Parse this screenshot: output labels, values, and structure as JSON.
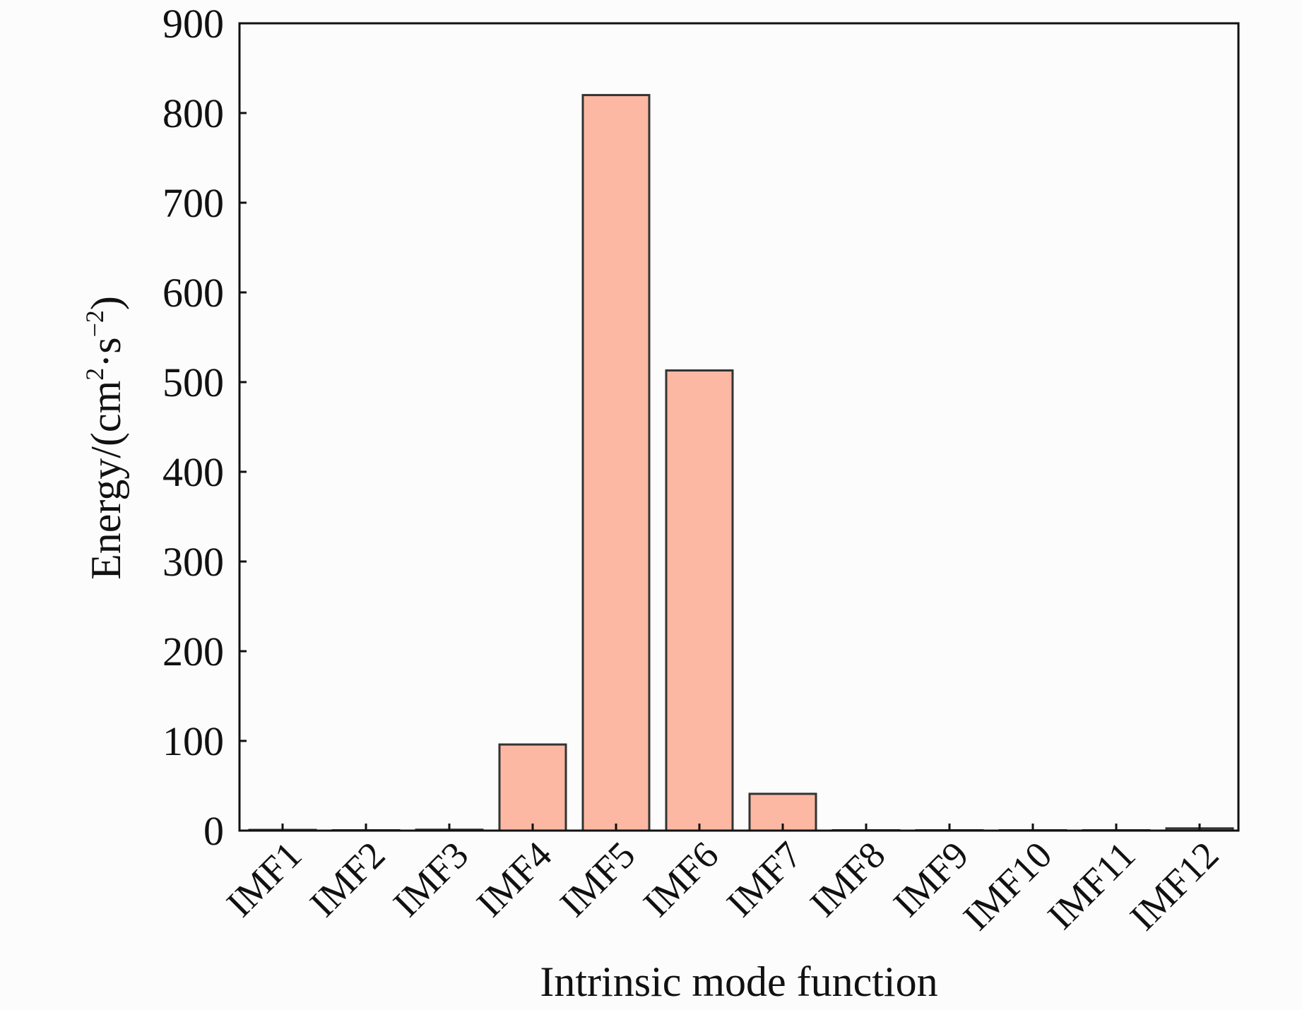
{
  "chart_data": {
    "type": "bar",
    "categories": [
      "IMF1",
      "IMF2",
      "IMF3",
      "IMF4",
      "IMF5",
      "IMF6",
      "IMF7",
      "IMF8",
      "IMF9",
      "IMF10",
      "IMF11",
      "IMF12"
    ],
    "values": [
      0.8,
      0.2,
      1.0,
      96,
      820,
      513,
      41,
      0.2,
      0.2,
      0.2,
      0.2,
      2.5
    ],
    "title": "",
    "xlabel": "Intrinsic mode function",
    "ylabel_main": "Energy/(cm",
    "ylabel_sup1": "2",
    "ylabel_mid": "·s",
    "ylabel_sup2": "−2",
    "ylabel_end": ")",
    "ylim": [
      0,
      900
    ],
    "yticks": [
      0,
      100,
      200,
      300,
      400,
      500,
      600,
      700,
      800,
      900
    ],
    "grid": false,
    "legend": "none",
    "bar_color": "#fdb8a3",
    "bar_edge_color": "#333333"
  }
}
